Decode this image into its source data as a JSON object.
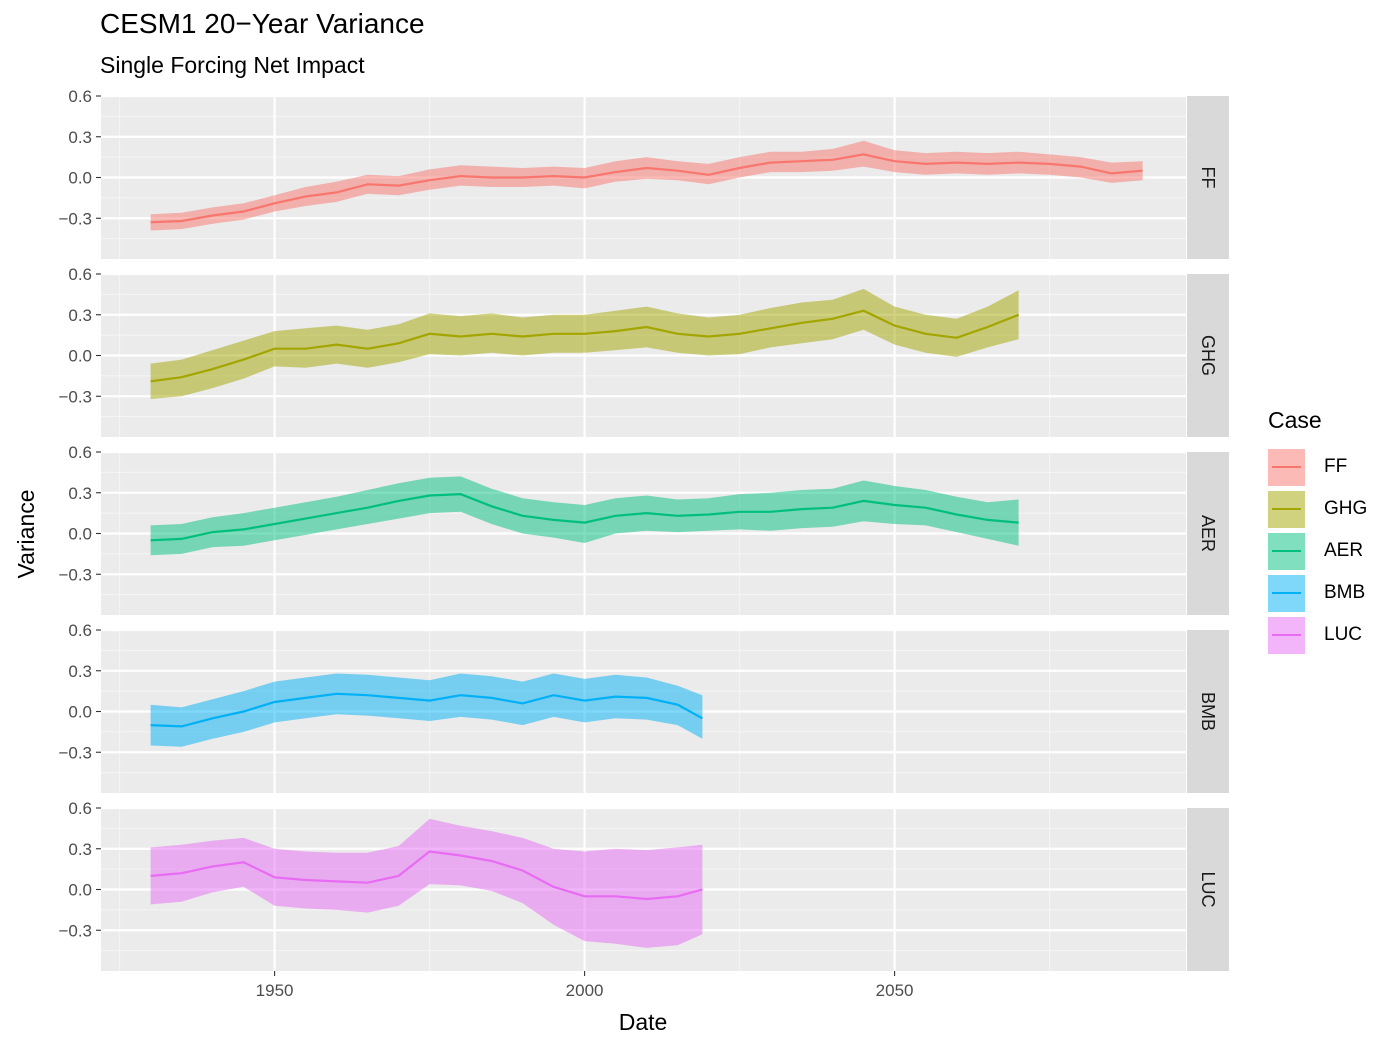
{
  "chart_data": {
    "type": "area",
    "title": "CESM1 20−Year Variance",
    "subtitle": "Single Forcing Net Impact",
    "xlabel": "Date",
    "ylabel": "Variance",
    "xlim": [
      1922,
      2097
    ],
    "ylim": [
      -0.6,
      0.6
    ],
    "x_ticks": [
      "1950",
      "2000",
      "2050"
    ],
    "x_tick_values": [
      1950,
      2000,
      2050
    ],
    "y_ticks": [
      "0.6",
      "0.3",
      "0.0",
      "−0.3"
    ],
    "y_tick_values": [
      0.6,
      0.3,
      0.0,
      -0.3
    ],
    "grid": true,
    "facets": "rows, one panel per series, strip label on the right",
    "legend": {
      "title": "Case",
      "position": "right"
    },
    "series": [
      {
        "name": "FF",
        "color": "#F8766D",
        "x": [
          1930,
          1935,
          1940,
          1945,
          1950,
          1955,
          1960,
          1965,
          1970,
          1975,
          1980,
          1985,
          1990,
          1995,
          2000,
          2005,
          2010,
          2015,
          2020,
          2025,
          2030,
          2035,
          2040,
          2045,
          2050,
          2055,
          2060,
          2065,
          2070,
          2075,
          2080,
          2085,
          2090
        ],
        "mean": [
          -0.33,
          -0.32,
          -0.28,
          -0.25,
          -0.19,
          -0.14,
          -0.11,
          -0.05,
          -0.06,
          -0.02,
          0.01,
          0.0,
          0.0,
          0.01,
          0.0,
          0.04,
          0.07,
          0.05,
          0.02,
          0.07,
          0.11,
          0.12,
          0.13,
          0.17,
          0.12,
          0.1,
          0.11,
          0.1,
          0.11,
          0.1,
          0.08,
          0.03,
          0.05
        ],
        "upper": [
          -0.27,
          -0.26,
          -0.22,
          -0.19,
          -0.13,
          -0.07,
          -0.03,
          0.02,
          0.01,
          0.06,
          0.09,
          0.08,
          0.07,
          0.08,
          0.07,
          0.12,
          0.15,
          0.12,
          0.1,
          0.15,
          0.19,
          0.19,
          0.21,
          0.27,
          0.2,
          0.18,
          0.19,
          0.18,
          0.19,
          0.17,
          0.15,
          0.11,
          0.12
        ],
        "lower": [
          -0.39,
          -0.38,
          -0.34,
          -0.31,
          -0.25,
          -0.21,
          -0.18,
          -0.12,
          -0.13,
          -0.09,
          -0.06,
          -0.07,
          -0.07,
          -0.06,
          -0.08,
          -0.03,
          -0.01,
          -0.02,
          -0.05,
          0.0,
          0.04,
          0.04,
          0.05,
          0.08,
          0.04,
          0.02,
          0.03,
          0.02,
          0.03,
          0.02,
          0.0,
          -0.04,
          -0.02
        ]
      },
      {
        "name": "GHG",
        "color": "#A3A500",
        "x": [
          1930,
          1935,
          1940,
          1945,
          1950,
          1955,
          1960,
          1965,
          1970,
          1975,
          1980,
          1985,
          1990,
          1995,
          2000,
          2005,
          2010,
          2015,
          2020,
          2025,
          2030,
          2035,
          2040,
          2045,
          2050,
          2055,
          2060,
          2065,
          2070
        ],
        "mean": [
          -0.19,
          -0.16,
          -0.1,
          -0.03,
          0.05,
          0.05,
          0.08,
          0.05,
          0.09,
          0.16,
          0.14,
          0.16,
          0.14,
          0.16,
          0.16,
          0.18,
          0.21,
          0.16,
          0.14,
          0.16,
          0.2,
          0.24,
          0.27,
          0.33,
          0.22,
          0.16,
          0.13,
          0.21,
          0.3
        ],
        "upper": [
          -0.06,
          -0.03,
          0.04,
          0.11,
          0.18,
          0.2,
          0.22,
          0.19,
          0.23,
          0.31,
          0.29,
          0.31,
          0.28,
          0.3,
          0.3,
          0.33,
          0.36,
          0.31,
          0.28,
          0.3,
          0.35,
          0.39,
          0.41,
          0.49,
          0.36,
          0.3,
          0.27,
          0.36,
          0.48
        ],
        "lower": [
          -0.32,
          -0.3,
          -0.24,
          -0.17,
          -0.08,
          -0.09,
          -0.06,
          -0.09,
          -0.05,
          0.01,
          0.0,
          0.02,
          0.0,
          0.02,
          0.02,
          0.04,
          0.06,
          0.02,
          0.0,
          0.01,
          0.06,
          0.09,
          0.12,
          0.19,
          0.08,
          0.02,
          -0.01,
          0.06,
          0.12
        ]
      },
      {
        "name": "AER",
        "color": "#00BF7D",
        "x": [
          1930,
          1935,
          1940,
          1945,
          1950,
          1955,
          1960,
          1965,
          1970,
          1975,
          1980,
          1985,
          1990,
          1995,
          2000,
          2005,
          2010,
          2015,
          2020,
          2025,
          2030,
          2035,
          2040,
          2045,
          2050,
          2055,
          2060,
          2065,
          2070
        ],
        "mean": [
          -0.05,
          -0.04,
          0.01,
          0.03,
          0.07,
          0.11,
          0.15,
          0.19,
          0.24,
          0.28,
          0.29,
          0.2,
          0.13,
          0.1,
          0.08,
          0.13,
          0.15,
          0.13,
          0.14,
          0.16,
          0.16,
          0.18,
          0.19,
          0.24,
          0.21,
          0.19,
          0.14,
          0.1,
          0.08
        ],
        "upper": [
          0.06,
          0.07,
          0.12,
          0.15,
          0.19,
          0.23,
          0.27,
          0.32,
          0.37,
          0.41,
          0.42,
          0.33,
          0.26,
          0.23,
          0.21,
          0.26,
          0.28,
          0.25,
          0.26,
          0.29,
          0.3,
          0.32,
          0.33,
          0.39,
          0.35,
          0.32,
          0.27,
          0.23,
          0.25
        ],
        "lower": [
          -0.16,
          -0.15,
          -0.1,
          -0.09,
          -0.05,
          -0.01,
          0.03,
          0.07,
          0.11,
          0.15,
          0.16,
          0.07,
          0.0,
          -0.03,
          -0.07,
          0.0,
          0.02,
          0.01,
          0.02,
          0.03,
          0.02,
          0.04,
          0.05,
          0.09,
          0.07,
          0.06,
          0.01,
          -0.04,
          -0.09
        ]
      },
      {
        "name": "BMB",
        "color": "#00B0F6",
        "x": [
          1930,
          1935,
          1940,
          1945,
          1950,
          1955,
          1960,
          1965,
          1970,
          1975,
          1980,
          1985,
          1990,
          1995,
          2000,
          2005,
          2010,
          2015,
          2019
        ],
        "mean": [
          -0.1,
          -0.11,
          -0.05,
          0.0,
          0.07,
          0.1,
          0.13,
          0.12,
          0.1,
          0.08,
          0.12,
          0.1,
          0.06,
          0.12,
          0.08,
          0.11,
          0.1,
          0.05,
          -0.05
        ],
        "upper": [
          0.05,
          0.03,
          0.09,
          0.15,
          0.22,
          0.25,
          0.28,
          0.27,
          0.25,
          0.23,
          0.28,
          0.26,
          0.22,
          0.28,
          0.24,
          0.27,
          0.25,
          0.19,
          0.12
        ],
        "lower": [
          -0.25,
          -0.26,
          -0.2,
          -0.15,
          -0.08,
          -0.05,
          -0.02,
          -0.03,
          -0.05,
          -0.07,
          -0.04,
          -0.06,
          -0.1,
          -0.04,
          -0.08,
          -0.05,
          -0.06,
          -0.1,
          -0.2
        ]
      },
      {
        "name": "LUC",
        "color": "#E76BF3",
        "x": [
          1930,
          1935,
          1940,
          1945,
          1950,
          1955,
          1960,
          1965,
          1970,
          1975,
          1980,
          1985,
          1990,
          1995,
          2000,
          2005,
          2010,
          2015,
          2019
        ],
        "mean": [
          0.1,
          0.12,
          0.17,
          0.2,
          0.09,
          0.07,
          0.06,
          0.05,
          0.1,
          0.28,
          0.25,
          0.21,
          0.14,
          0.02,
          -0.05,
          -0.05,
          -0.07,
          -0.05,
          0.0
        ],
        "upper": [
          0.31,
          0.33,
          0.36,
          0.38,
          0.3,
          0.28,
          0.27,
          0.27,
          0.32,
          0.52,
          0.47,
          0.43,
          0.38,
          0.3,
          0.28,
          0.3,
          0.29,
          0.31,
          0.33
        ],
        "lower": [
          -0.11,
          -0.09,
          -0.02,
          0.02,
          -0.12,
          -0.14,
          -0.15,
          -0.17,
          -0.12,
          0.04,
          0.03,
          -0.01,
          -0.1,
          -0.26,
          -0.38,
          -0.4,
          -0.43,
          -0.41,
          -0.33
        ]
      }
    ]
  }
}
